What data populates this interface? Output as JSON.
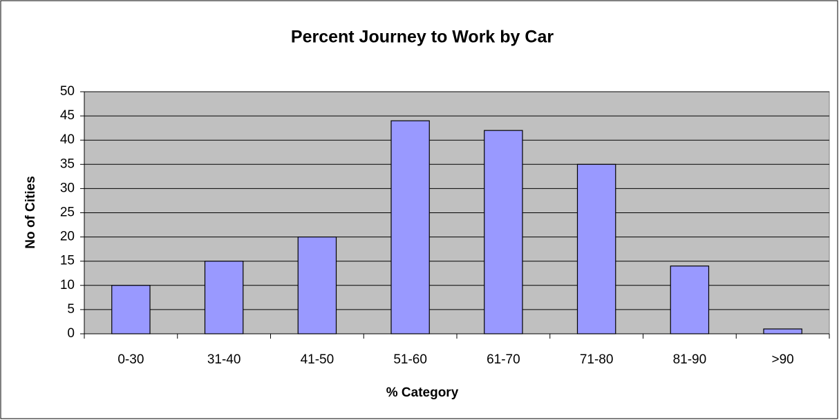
{
  "chart_data": {
    "type": "bar",
    "title": "Percent Journey to Work by Car",
    "x_label": "% Category",
    "y_label": "No of Cities",
    "categories": [
      "0-30",
      "31-40",
      "41-50",
      "51-60",
      "61-70",
      "71-80",
      "81-90",
      ">90"
    ],
    "values": [
      10,
      15,
      20,
      44,
      42,
      35,
      14,
      1
    ],
    "color": "#9999ff",
    "plot_background": "#c0c0c0",
    "ylim": [
      0,
      50
    ],
    "yticks": [
      0,
      5,
      10,
      15,
      20,
      25,
      30,
      35,
      40,
      45,
      50
    ],
    "grid": true
  }
}
